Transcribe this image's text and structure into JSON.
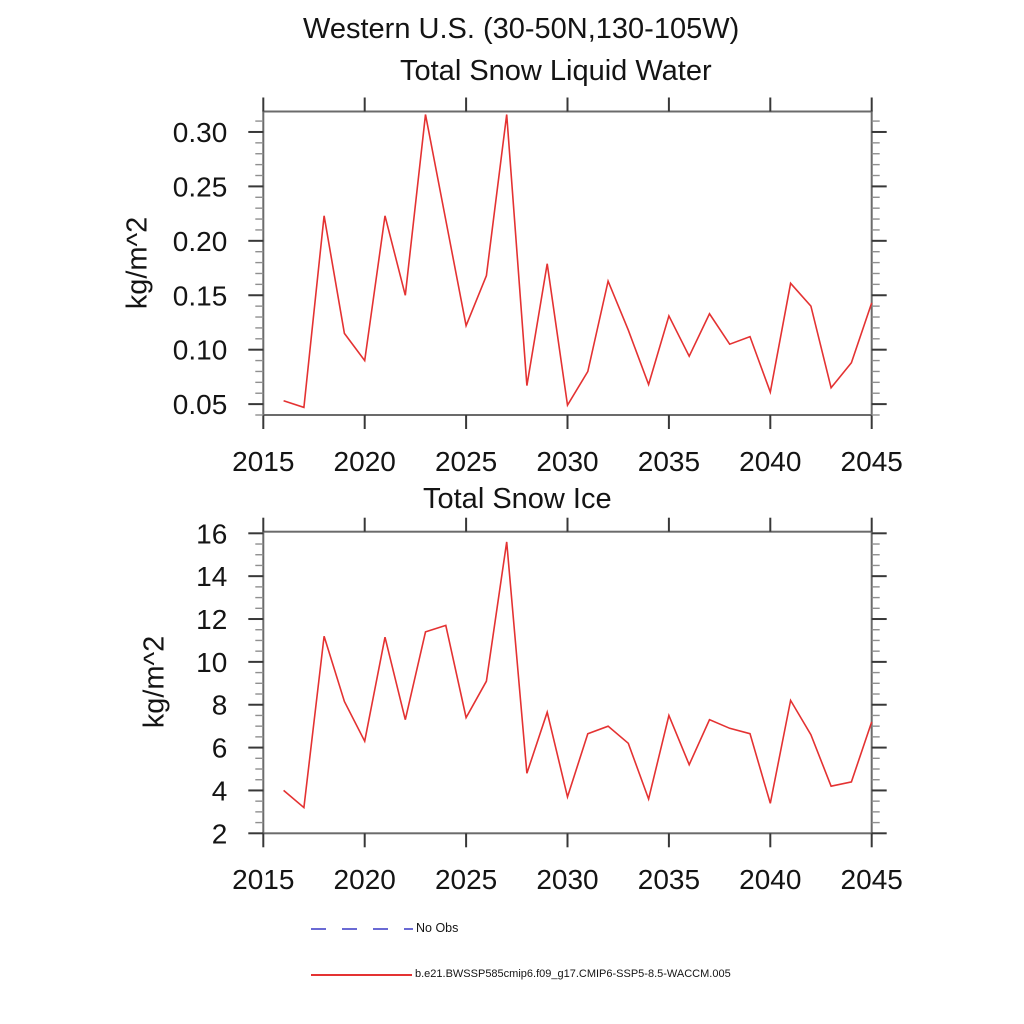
{
  "page": {
    "suptitle": "Western U.S. (30-50N,130-105W)"
  },
  "colors": {
    "series_red": "#e43232",
    "no_obs_blue": "#6a6ad4",
    "frame_gray": "#6b6b6b",
    "major_tick": "#383838",
    "minor_tick": "#8f8f8f",
    "text": "#141414"
  },
  "legend": {
    "items": [
      {
        "label": "No Obs",
        "style": "dashed",
        "color": "#6a6ad4"
      },
      {
        "label": "b.e21.BWSSP585cmip6.f09_g17.CMIP6-SSP5-8.5-WACCM.005",
        "style": "solid",
        "color": "#e43232"
      }
    ]
  },
  "chart_data": [
    {
      "type": "line",
      "title": "Total Snow Liquid Water",
      "xlabel": "",
      "ylabel": "kg/m^2",
      "xlim": [
        2015,
        2045
      ],
      "ylim": [
        0.04,
        0.3188
      ],
      "grid": false,
      "legend_position": "below-figure",
      "x_ticks": [
        2015,
        2020,
        2025,
        2030,
        2035,
        2040,
        2045
      ],
      "x_tick_labels": [
        "2015",
        "2020",
        "2025",
        "2030",
        "2035",
        "2040",
        "2045"
      ],
      "y_ticks": [
        0.05,
        0.1,
        0.15,
        0.2,
        0.25,
        0.3
      ],
      "y_tick_labels": [
        "0.05",
        "0.10",
        "0.15",
        "0.20",
        "0.25",
        "0.30"
      ],
      "y_minor_step": 0.01,
      "x": [
        2016,
        2017,
        2018,
        2019,
        2020,
        2021,
        2022,
        2023,
        2024,
        2025,
        2026,
        2027,
        2028,
        2029,
        2030,
        2031,
        2032,
        2033,
        2034,
        2035,
        2036,
        2037,
        2038,
        2039,
        2040,
        2041,
        2042,
        2043,
        2044,
        2045
      ],
      "series": [
        {
          "name": "b.e21.BWSSP585cmip6.f09_g17.CMIP6-SSP5-8.5-WACCM.005",
          "color": "#e43232",
          "values": [
            0.053,
            0.047,
            0.223,
            0.115,
            0.09,
            0.223,
            0.15,
            0.316,
            0.219,
            0.122,
            0.168,
            0.316,
            0.067,
            0.179,
            0.049,
            0.08,
            0.163,
            0.118,
            0.068,
            0.131,
            0.094,
            0.133,
            0.105,
            0.112,
            0.061,
            0.161,
            0.14,
            0.065,
            0.088,
            0.143
          ]
        }
      ]
    },
    {
      "type": "line",
      "title": "Total Snow Ice",
      "xlabel": "",
      "ylabel": "kg/m^2",
      "xlim": [
        2015,
        2045
      ],
      "ylim": [
        2,
        16.075
      ],
      "grid": false,
      "legend_position": "below-figure",
      "x_ticks": [
        2015,
        2020,
        2025,
        2030,
        2035,
        2040,
        2045
      ],
      "x_tick_labels": [
        "2015",
        "2020",
        "2025",
        "2030",
        "2035",
        "2040",
        "2045"
      ],
      "y_ticks": [
        2,
        4,
        6,
        8,
        10,
        12,
        14,
        16
      ],
      "y_tick_labels": [
        "2",
        "4",
        "6",
        "8",
        "10",
        "12",
        "14",
        "16"
      ],
      "y_minor_step": 0.5,
      "x": [
        2016,
        2017,
        2018,
        2019,
        2020,
        2021,
        2022,
        2023,
        2024,
        2025,
        2026,
        2027,
        2028,
        2029,
        2030,
        2031,
        2032,
        2033,
        2034,
        2035,
        2036,
        2037,
        2038,
        2039,
        2040,
        2041,
        2042,
        2043,
        2044,
        2045
      ],
      "series": [
        {
          "name": "b.e21.BWSSP585cmip6.f09_g17.CMIP6-SSP5-8.5-WACCM.005",
          "color": "#e43232",
          "values": [
            4.0,
            3.2,
            11.2,
            8.15,
            6.3,
            11.15,
            7.3,
            11.4,
            11.7,
            7.4,
            9.1,
            15.6,
            4.8,
            7.65,
            3.7,
            6.65,
            7.0,
            6.2,
            3.6,
            7.5,
            5.2,
            7.3,
            6.9,
            6.65,
            3.4,
            8.2,
            6.6,
            4.2,
            4.4,
            7.2
          ]
        }
      ]
    }
  ]
}
